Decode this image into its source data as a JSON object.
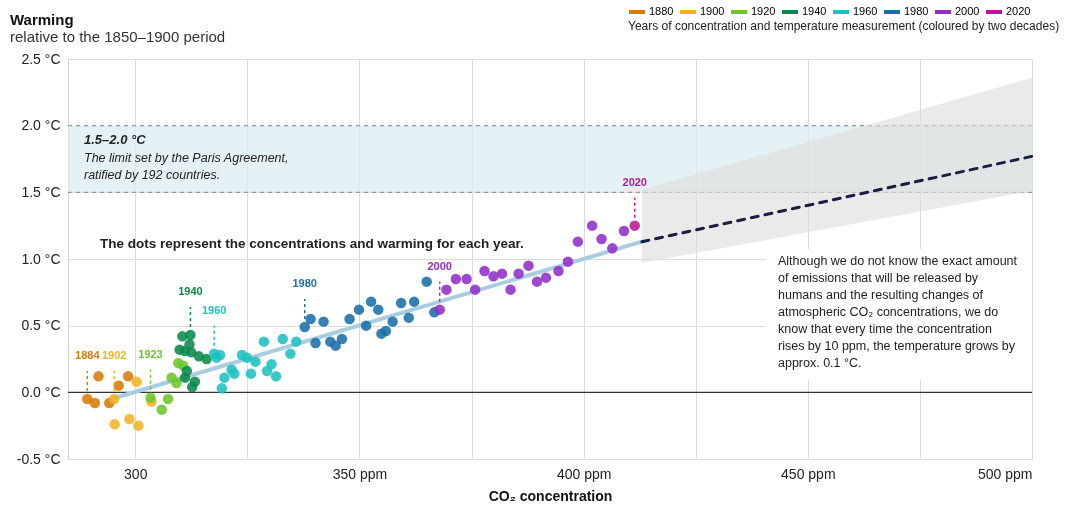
{
  "chart_data": {
    "type": "scatter",
    "title": "Warming",
    "subtitle": "relative to the 1850–1900 period",
    "xlabel": "CO₂ concentration",
    "legend_title": "Years of concentration and temperature measurement (coloured by two decades)",
    "xlim": [
      285,
      500
    ],
    "ylim": [
      -0.5,
      2.5
    ],
    "xticks": [
      300,
      {
        "value": 325,
        "label": null
      },
      {
        "value": 350,
        "label": "350 ppm"
      },
      {
        "value": 375,
        "label": null
      },
      {
        "value": 400,
        "label": "400 ppm"
      },
      {
        "value": 425,
        "label": null
      },
      {
        "value": 450,
        "label": "450 ppm"
      },
      {
        "value": 475,
        "label": null
      },
      {
        "value": 500,
        "label": "500 ppm"
      }
    ],
    "yticks": [
      {
        "value": -0.5,
        "label": "-0.5 °C"
      },
      {
        "value": 0,
        "label": "0.0 °C"
      },
      {
        "value": 0.5,
        "label": "0.5 °C"
      },
      {
        "value": 1,
        "label": "1.0 °C"
      },
      {
        "value": 1.5,
        "label": "1.5 °C"
      },
      {
        "value": 2,
        "label": "2.0 °C"
      },
      {
        "value": 2.5,
        "label": "2.5 °C"
      }
    ],
    "grid": true,
    "legend": "top right",
    "marker": "circle",
    "series": [
      {
        "name": "1880",
        "color": "#d97a0a",
        "x": [
          289.3,
          291.0,
          291.8,
          294.2,
          296.3,
          298.4
        ],
        "values": [
          -0.05,
          -0.08,
          0.12,
          -0.08,
          0.05,
          0.12
        ]
      },
      {
        "name": "1900",
        "color": "#f0b323",
        "x": [
          295.3,
          295.4,
          298.7,
          300.7,
          300.3,
          303.6
        ],
        "values": [
          -0.05,
          -0.24,
          -0.2,
          -0.25,
          0.08,
          -0.07
        ]
      },
      {
        "name": "1920",
        "color": "#6cc62a",
        "x": [
          303.4,
          305.9,
          307.3,
          308.1,
          309.2,
          309.6,
          310.7
        ],
        "values": [
          -0.04,
          -0.13,
          -0.05,
          0.11,
          0.07,
          0.22,
          0.2
        ]
      },
      {
        "name": "1940",
        "color": "#0a8a4a",
        "x": [
          310.5,
          312.3,
          312.1,
          309.9,
          311.1,
          312.5,
          314.2,
          315.9,
          311.5,
          311.1,
          313.3,
          312.7
        ],
        "values": [
          0.42,
          0.43,
          0.36,
          0.32,
          0.31,
          0.3,
          0.27,
          0.25,
          0.16,
          0.11,
          0.08,
          0.04
        ]
      },
      {
        "name": "1960",
        "color": "#1ec0c0",
        "x": [
          317.6,
          318.9,
          318.1,
          319.9,
          319.3,
          321.5,
          322.1,
          323.8,
          324.9,
          325.8,
          326.8,
          328.7,
          332.9,
          335.9,
          334.6,
          330.4,
          329.4,
          331.4
        ],
        "values": [
          0.29,
          0.28,
          0.26,
          0.11,
          0.03,
          0.17,
          0.14,
          0.28,
          0.26,
          0.14,
          0.23,
          0.38,
          0.4,
          0.38,
          0.29,
          0.21,
          0.16,
          0.12
        ]
      },
      {
        "name": "1980",
        "color": "#1a6fa8",
        "x": [
          337.8,
          339.1,
          342,
          340.2,
          343.5,
          344.7,
          346.1,
          347.8,
          349.9,
          351.5,
          352.6,
          354.2,
          354.9,
          355.9,
          357.4,
          359.3,
          361,
          362.2,
          365,
          366.7
        ],
        "values": [
          0.49,
          0.55,
          0.53,
          0.37,
          0.38,
          0.35,
          0.4,
          0.55,
          0.62,
          0.5,
          0.68,
          0.62,
          0.44,
          0.46,
          0.53,
          0.67,
          0.56,
          0.68,
          0.83,
          0.6
        ]
      },
      {
        "name": "2000",
        "color": "#8e2fc8",
        "x": [
          367.9,
          369.4,
          371.5,
          373.9,
          375.8,
          377.9,
          379.9,
          381.8,
          383.7,
          385.5,
          387.7,
          389.6,
          391.6,
          394.4,
          396.5,
          398.7,
          401.9,
          404,
          406.4,
          409
        ],
        "values": [
          0.62,
          0.77,
          0.85,
          0.85,
          0.77,
          0.91,
          0.87,
          0.89,
          0.77,
          0.89,
          0.95,
          0.83,
          0.86,
          0.91,
          0.98,
          1.13,
          1.25,
          1.15,
          1.08,
          1.21
        ]
      },
      {
        "name": "2020",
        "color": "#c0159a",
        "x": [
          411.4
        ],
        "values": [
          1.25
        ]
      },
      {
        "type": "line",
        "marker": "none",
        "color": "#a8cde0",
        "x": [
          294.6,
          413
        ],
        "values": [
          -0.05,
          1.13
        ]
      },
      {
        "type": "line",
        "marker": "none",
        "color": "#1b1d45",
        "line_style": "dashed",
        "x": [
          413,
          500
        ],
        "values": [
          1.13,
          1.77
        ],
        "lower": [
          0.97,
          1.51
        ],
        "upper": [
          1.52,
          2.36
        ]
      }
    ],
    "bands": [
      {
        "axis": "y",
        "from": 1.5,
        "to": 2,
        "label": "1.5–2.0 °C",
        "color": "#dcedf1"
      }
    ],
    "ref_lines": [
      {
        "axis": "y",
        "value": 0,
        "color": "#333333"
      }
    ],
    "annotations": [
      {
        "text": "1884",
        "x": 289.3,
        "y": -0.05
      },
      {
        "text": "1902",
        "x": 295.3,
        "y": -0.05
      },
      {
        "text": "1923",
        "x": 303.4,
        "y": -0.04
      },
      {
        "text": "1940",
        "x": 312.3,
        "y": 0.43
      },
      {
        "text": "1960",
        "x": 317.6,
        "y": 0.29
      },
      {
        "text": "1980",
        "x": 337.8,
        "y": 0.49
      },
      {
        "text": "2000",
        "x": 367.9,
        "y": 0.62
      },
      {
        "text": "2020",
        "x": 411.4,
        "y": 1.25
      },
      "The dots represent the concentrations and warming for each year.",
      "The limit set by the Paris Agreement, ratified by 192 countries.",
      "Although we do not know the exact amount of emissions that will be released by humans and the resulting changes of atmospheric CO₂ concentrations, we do know that every time the concentration rises by 10 ppm, the temperature grows by approx. 0.1 °C."
    ]
  }
}
